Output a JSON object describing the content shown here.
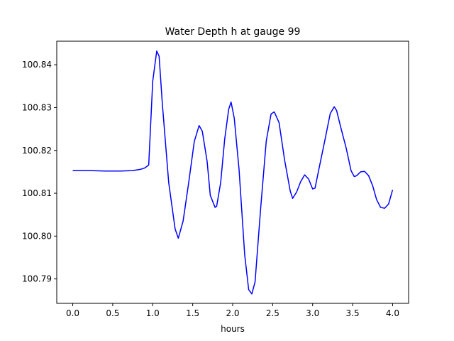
{
  "chart_data": {
    "type": "line",
    "title": "Water Depth h at gauge 99",
    "xlabel": "hours",
    "ylabel": "",
    "xlim": [
      -0.2,
      4.2
    ],
    "ylim": [
      100.7843,
      100.8455
    ],
    "xticks": [
      0.0,
      0.5,
      1.0,
      1.5,
      2.0,
      2.5,
      3.0,
      3.5,
      4.0
    ],
    "xtick_labels": [
      "0.0",
      "0.5",
      "1.0",
      "1.5",
      "2.0",
      "2.5",
      "3.0",
      "3.5",
      "4.0"
    ],
    "yticks": [
      100.79,
      100.8,
      100.81,
      100.82,
      100.83,
      100.84
    ],
    "ytick_labels": [
      "100.79",
      "100.80",
      "100.81",
      "100.82",
      "100.83",
      "100.84"
    ],
    "grid": false,
    "series": [
      {
        "color": "#0000ff",
        "x": [
          0.0,
          0.2,
          0.4,
          0.6,
          0.75,
          0.85,
          0.9,
          0.95,
          1.0,
          1.05,
          1.08,
          1.12,
          1.2,
          1.28,
          1.32,
          1.38,
          1.45,
          1.52,
          1.58,
          1.62,
          1.68,
          1.72,
          1.78,
          1.8,
          1.85,
          1.9,
          1.95,
          1.98,
          2.02,
          2.08,
          2.15,
          2.2,
          2.24,
          2.28,
          2.35,
          2.42,
          2.48,
          2.52,
          2.58,
          2.65,
          2.72,
          2.75,
          2.8,
          2.85,
          2.9,
          2.95,
          3.0,
          3.03,
          3.08,
          3.15,
          3.22,
          3.27,
          3.3,
          3.35,
          3.42,
          3.48,
          3.52,
          3.55,
          3.6,
          3.65,
          3.7,
          3.75,
          3.8,
          3.85,
          3.9,
          3.95,
          4.0
        ],
        "y": [
          100.8153,
          100.8153,
          100.8152,
          100.8152,
          100.8153,
          100.8156,
          100.8159,
          100.8166,
          100.8361,
          100.8432,
          100.842,
          100.831,
          100.8125,
          100.8017,
          100.7995,
          100.8035,
          100.8125,
          100.8221,
          100.8258,
          100.8245,
          100.8175,
          100.8095,
          100.8067,
          100.807,
          100.8125,
          100.8226,
          100.8296,
          100.8313,
          100.8275,
          100.8155,
          100.7957,
          100.7875,
          100.7865,
          100.7893,
          100.8065,
          100.8222,
          100.8285,
          100.829,
          100.8265,
          100.8177,
          100.8105,
          100.8088,
          100.8103,
          100.8127,
          100.8143,
          100.8133,
          100.811,
          100.8112,
          100.8158,
          100.8221,
          100.8286,
          100.8302,
          100.8293,
          100.8255,
          100.8205,
          100.8153,
          100.8139,
          100.8141,
          100.815,
          100.8151,
          100.8141,
          100.8118,
          100.8085,
          100.8067,
          100.8065,
          100.8075,
          100.8108
        ]
      }
    ]
  }
}
